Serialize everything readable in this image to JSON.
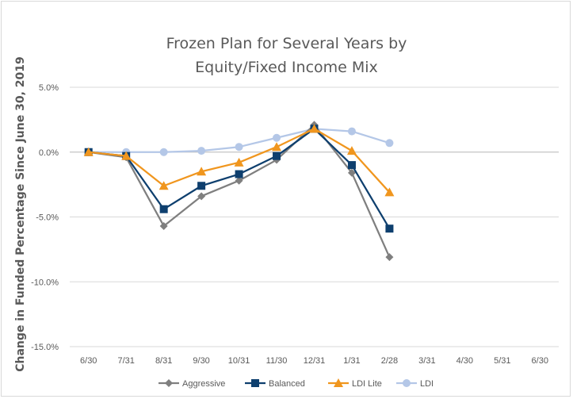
{
  "chart_data": {
    "type": "line",
    "title_line1": "Frozen Plan for Several Years by",
    "title_line2": "Equity/Fixed Income Mix",
    "xlabel": "",
    "ylabel": "Change in Funded Percentage Since June 30, 2019",
    "categories": [
      "6/30",
      "7/31",
      "8/31",
      "9/30",
      "10/31",
      "11/30",
      "12/31",
      "1/31",
      "2/28",
      "3/31",
      "4/30",
      "5/31",
      "6/30"
    ],
    "ylim": [
      -15,
      5
    ],
    "yticks": [
      5,
      0,
      -5,
      -10,
      -15
    ],
    "ytick_labels": [
      "5.0%",
      "0.0%",
      "-5.0%",
      "-10.0%",
      "-15.0%"
    ],
    "grid": true,
    "legend_position": "bottom",
    "series": [
      {
        "name": "Aggressive",
        "color": "#7f7f7f",
        "marker": "diamond",
        "values": [
          0.0,
          -0.4,
          -5.7,
          -3.4,
          -2.2,
          -0.6,
          2.1,
          -1.6,
          -8.1,
          null,
          null,
          null,
          null
        ]
      },
      {
        "name": "Balanced",
        "color": "#0e3f6e",
        "marker": "square",
        "values": [
          0.0,
          -0.3,
          -4.4,
          -2.6,
          -1.7,
          -0.3,
          1.8,
          -1.0,
          -5.9,
          null,
          null,
          null,
          null
        ]
      },
      {
        "name": "LDI Lite",
        "color": "#f0961e",
        "marker": "triangle",
        "values": [
          0.0,
          -0.3,
          -2.6,
          -1.5,
          -0.8,
          0.4,
          1.8,
          0.1,
          -3.1,
          null,
          null,
          null,
          null
        ]
      },
      {
        "name": "LDI",
        "color": "#b4c7e7",
        "marker": "circle",
        "values": [
          0.0,
          0.0,
          0.0,
          0.1,
          0.4,
          1.1,
          1.8,
          1.6,
          0.7,
          null,
          null,
          null,
          null
        ]
      }
    ]
  }
}
